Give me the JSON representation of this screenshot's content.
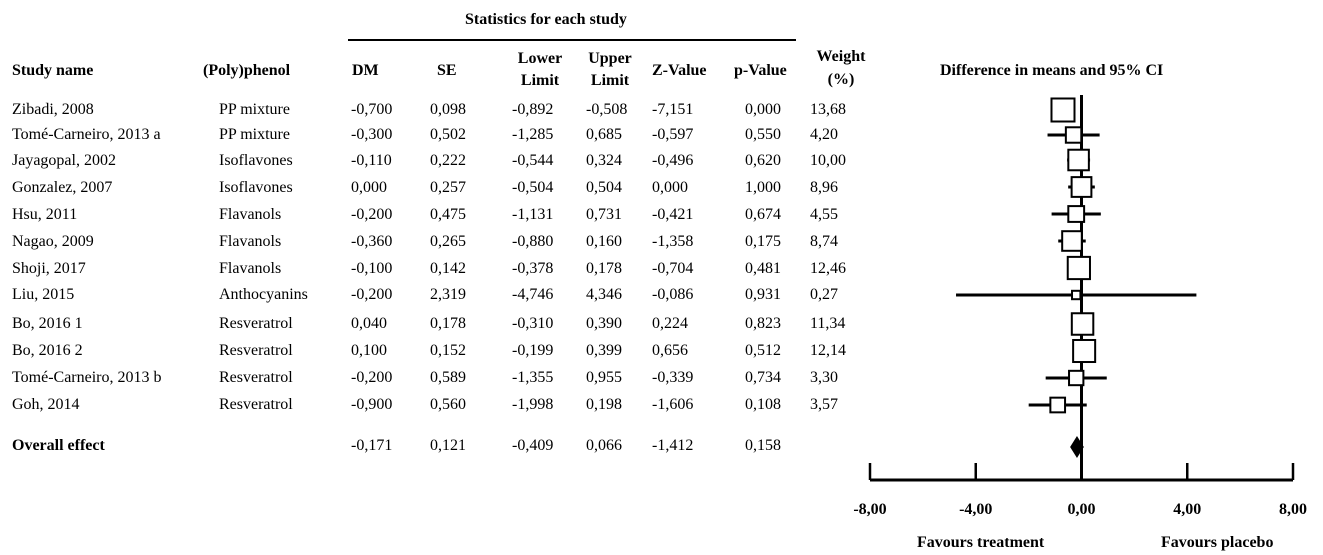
{
  "table": {
    "group_header": "Statistics for each study",
    "headers": {
      "study": "Study name",
      "polyphenol": "(Poly)phenol",
      "dm": "DM",
      "se": "SE",
      "lower_1": "Lower",
      "lower_2": "Limit",
      "upper_1": "Upper",
      "upper_2": "Limit",
      "z": "Z-Value",
      "p": "p-Value",
      "weight_1": "Weight",
      "weight_2": "(%)"
    },
    "rows": [
      {
        "study": "Zibadi, 2008",
        "polyphenol": "PP mixture",
        "dm": "-0,700",
        "se": "0,098",
        "lower": "-0,892",
        "upper": "-0,508",
        "z": "-7,151",
        "p": "0,000",
        "weight": "13,68"
      },
      {
        "study": "Tomé-Carneiro, 2013 a",
        "polyphenol": "PP mixture",
        "dm": "-0,300",
        "se": "0,502",
        "lower": "-1,285",
        "upper": "0,685",
        "z": "-0,597",
        "p": "0,550",
        "weight": "4,20"
      },
      {
        "study": "Jayagopal, 2002",
        "polyphenol": "Isoflavones",
        "dm": "-0,110",
        "se": "0,222",
        "lower": "-0,544",
        "upper": "0,324",
        "z": "-0,496",
        "p": "0,620",
        "weight": "10,00"
      },
      {
        "study": "Gonzalez, 2007",
        "polyphenol": "Isoflavones",
        "dm": "0,000",
        "se": "0,257",
        "lower": "-0,504",
        "upper": "0,504",
        "z": "0,000",
        "p": "1,000",
        "weight": "8,96"
      },
      {
        "study": "Hsu, 2011",
        "polyphenol": "Flavanols",
        "dm": "-0,200",
        "se": "0,475",
        "lower": "-1,131",
        "upper": "0,731",
        "z": "-0,421",
        "p": "0,674",
        "weight": "4,55"
      },
      {
        "study": "Nagao, 2009",
        "polyphenol": "Flavanols",
        "dm": "-0,360",
        "se": "0,265",
        "lower": "-0,880",
        "upper": "0,160",
        "z": "-1,358",
        "p": "0,175",
        "weight": "8,74"
      },
      {
        "study": "Shoji, 2017",
        "polyphenol": "Flavanols",
        "dm": "-0,100",
        "se": "0,142",
        "lower": "-0,378",
        "upper": "0,178",
        "z": "-0,704",
        "p": "0,481",
        "weight": "12,46"
      },
      {
        "study": "Liu, 2015",
        "polyphenol": "Anthocyanins",
        "dm": "-0,200",
        "se": "2,319",
        "lower": "-4,746",
        "upper": "4,346",
        "z": "-0,086",
        "p": "0,931",
        "weight": "0,27"
      },
      {
        "study": "Bo, 2016 1",
        "polyphenol": "Resveratrol",
        "dm": "0,040",
        "se": "0,178",
        "lower": "-0,310",
        "upper": "0,390",
        "z": "0,224",
        "p": "0,823",
        "weight": "11,34"
      },
      {
        "study": "Bo, 2016 2",
        "polyphenol": "Resveratrol",
        "dm": "0,100",
        "se": "0,152",
        "lower": "-0,199",
        "upper": "0,399",
        "z": "0,656",
        "p": "0,512",
        "weight": "12,14"
      },
      {
        "study": "Tomé-Carneiro, 2013 b",
        "polyphenol": "Resveratrol",
        "dm": "-0,200",
        "se": "0,589",
        "lower": "-1,355",
        "upper": "0,955",
        "z": "-0,339",
        "p": "0,734",
        "weight": "3,30"
      },
      {
        "study": "Goh, 2014",
        "polyphenol": "Resveratrol",
        "dm": "-0,900",
        "se": "0,560",
        "lower": "-1,998",
        "upper": "0,198",
        "z": "-1,606",
        "p": "0,108",
        "weight": "3,57"
      }
    ],
    "overall": {
      "study": "Overall effect",
      "dm": "-0,171",
      "se": "0,121",
      "lower": "-0,409",
      "upper": "0,066",
      "z": "-1,412",
      "p": "0,158"
    }
  },
  "chart_data": {
    "type": "forest",
    "title": "Difference in means and 95% CI",
    "studies": [
      {
        "name": "Zibadi, 2008",
        "estimate": -0.7,
        "lower": -0.892,
        "upper": -0.508,
        "weight": 13.68
      },
      {
        "name": "Tomé-Carneiro, 2013 a",
        "estimate": -0.3,
        "lower": -1.285,
        "upper": 0.685,
        "weight": 4.2
      },
      {
        "name": "Jayagopal, 2002",
        "estimate": -0.11,
        "lower": -0.544,
        "upper": 0.324,
        "weight": 10.0
      },
      {
        "name": "Gonzalez, 2007",
        "estimate": 0.0,
        "lower": -0.504,
        "upper": 0.504,
        "weight": 8.96
      },
      {
        "name": "Hsu, 2011",
        "estimate": -0.2,
        "lower": -1.131,
        "upper": 0.731,
        "weight": 4.55
      },
      {
        "name": "Nagao, 2009",
        "estimate": -0.36,
        "lower": -0.88,
        "upper": 0.16,
        "weight": 8.74
      },
      {
        "name": "Shoji, 2017",
        "estimate": -0.1,
        "lower": -0.378,
        "upper": 0.178,
        "weight": 12.46
      },
      {
        "name": "Liu, 2015",
        "estimate": -0.2,
        "lower": -4.746,
        "upper": 4.346,
        "weight": 0.27
      },
      {
        "name": "Bo, 2016 1",
        "estimate": 0.04,
        "lower": -0.31,
        "upper": 0.39,
        "weight": 11.34
      },
      {
        "name": "Bo, 2016 2",
        "estimate": 0.1,
        "lower": -0.199,
        "upper": 0.399,
        "weight": 12.14
      },
      {
        "name": "Tomé-Carneiro, 2013 b",
        "estimate": -0.2,
        "lower": -1.355,
        "upper": 0.955,
        "weight": 3.3
      },
      {
        "name": "Goh, 2014",
        "estimate": -0.9,
        "lower": -1.998,
        "upper": 0.198,
        "weight": 3.57
      }
    ],
    "overall": {
      "name": "Overall effect",
      "estimate": -0.171,
      "lower": -0.409,
      "upper": 0.066
    },
    "xlim": [
      -8,
      8
    ],
    "xticks": [
      -8,
      -4,
      0,
      4,
      8
    ],
    "xtick_labels": [
      "-8,00",
      "-4,00",
      "0,00",
      "4,00",
      "8,00"
    ],
    "left_label": "Favours treatment",
    "right_label": "Favours placebo",
    "colors": {
      "marker_fill": "#ffffff",
      "stroke": "#000000"
    }
  }
}
